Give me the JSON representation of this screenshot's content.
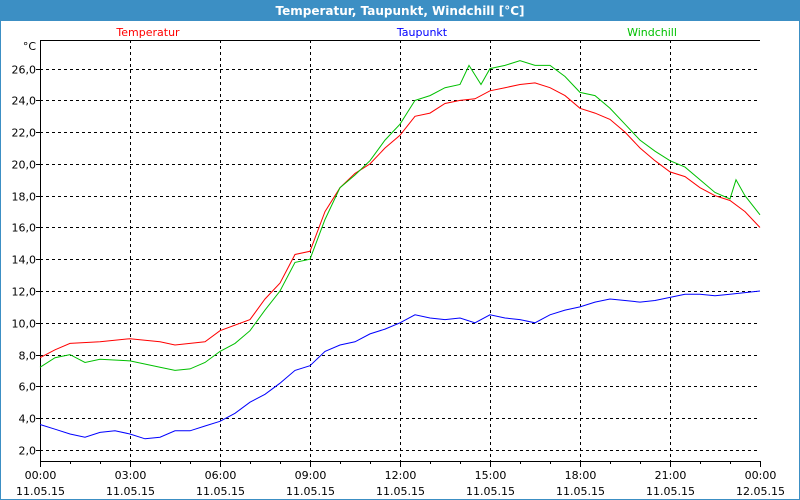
{
  "window_title": "Temperatur, Taupunkt, Windchill [°C]",
  "chart_data": {
    "type": "line",
    "title": "Temperatur, Taupunkt, Windchill [°C]",
    "ylabel": "°C",
    "ylim": [
      1.3,
      27.8
    ],
    "xlim": [
      0,
      24
    ],
    "grid": true,
    "y_ticks": [
      "2,0",
      "4,0",
      "6,0",
      "8,0",
      "10,0",
      "12,0",
      "14,0",
      "16,0",
      "18,0",
      "20,0",
      "22,0",
      "24,0",
      "26,0"
    ],
    "y_tick_values": [
      2,
      4,
      6,
      8,
      10,
      12,
      14,
      16,
      18,
      20,
      22,
      24,
      26
    ],
    "x_ticks": [
      {
        "time": "00:00",
        "date": "11.05.15"
      },
      {
        "time": "03:00",
        "date": "11.05.15"
      },
      {
        "time": "06:00",
        "date": "11.05.15"
      },
      {
        "time": "09:00",
        "date": "11.05.15"
      },
      {
        "time": "12:00",
        "date": "11.05.15"
      },
      {
        "time": "15:00",
        "date": "11.05.15"
      },
      {
        "time": "18:00",
        "date": "11.05.15"
      },
      {
        "time": "21:00",
        "date": "11.05.15"
      },
      {
        "time": "00:00",
        "date": "12.05.15"
      }
    ],
    "legend_placement": "top",
    "series": [
      {
        "name": "Temperatur",
        "color": "#ff0000",
        "x": [
          0,
          0.5,
          1,
          2,
          3,
          4,
          4.5,
          5,
          5.5,
          6,
          7,
          7.5,
          8,
          8.5,
          9,
          9.5,
          10,
          10.5,
          11,
          11.5,
          12,
          12.5,
          13,
          13.5,
          14,
          14.5,
          15,
          15.5,
          16,
          16.5,
          17,
          17.5,
          18,
          18.5,
          19,
          19.5,
          20,
          20.5,
          21,
          21.5,
          22,
          22.5,
          23,
          23.5,
          24
        ],
        "values": [
          7.8,
          8.3,
          8.7,
          8.8,
          9.0,
          8.8,
          8.6,
          8.7,
          8.8,
          9.5,
          10.2,
          11.5,
          12.5,
          14.3,
          14.5,
          17.0,
          18.5,
          19.4,
          20.0,
          21.0,
          21.8,
          23.0,
          23.2,
          23.8,
          24.0,
          24.1,
          24.6,
          24.8,
          25.0,
          25.1,
          24.8,
          24.3,
          23.5,
          23.2,
          22.8,
          22.0,
          21.0,
          20.2,
          19.5,
          19.2,
          18.5,
          18.0,
          17.7,
          17.0,
          16.0
        ]
      },
      {
        "name": "Taupunkt",
        "color": "#0000ff",
        "x": [
          0,
          0.5,
          1,
          1.5,
          2,
          2.5,
          3,
          3.5,
          4,
          4.5,
          5,
          5.5,
          6,
          6.5,
          7,
          7.5,
          8,
          8.5,
          9,
          9.5,
          10,
          10.5,
          11,
          11.5,
          12,
          12.5,
          13,
          13.5,
          14,
          14.5,
          15,
          15.5,
          16,
          16.5,
          17,
          17.5,
          18,
          18.5,
          19,
          19.5,
          20,
          20.5,
          21,
          21.5,
          22,
          22.5,
          23,
          23.5,
          24
        ],
        "values": [
          3.6,
          3.3,
          3.0,
          2.8,
          3.1,
          3.2,
          3.0,
          2.7,
          2.8,
          3.2,
          3.2,
          3.5,
          3.8,
          4.3,
          5.0,
          5.5,
          6.2,
          7.0,
          7.3,
          8.2,
          8.6,
          8.8,
          9.3,
          9.6,
          10.0,
          10.5,
          10.3,
          10.2,
          10.3,
          10.0,
          10.5,
          10.3,
          10.2,
          10.0,
          10.5,
          10.8,
          11.0,
          11.3,
          11.5,
          11.4,
          11.3,
          11.4,
          11.6,
          11.8,
          11.8,
          11.7,
          11.8,
          11.9,
          12.0
        ]
      },
      {
        "name": "Windchill",
        "color": "#00c000",
        "x": [
          0,
          0.5,
          1,
          1.5,
          2,
          3,
          4,
          4.5,
          5,
          5.5,
          6,
          6.5,
          7,
          7.5,
          8,
          8.5,
          9,
          9.5,
          10,
          10.5,
          11,
          11.5,
          12,
          12.5,
          13,
          13.5,
          14,
          14.3,
          14.7,
          15,
          15.5,
          16,
          16.5,
          17,
          17.5,
          18,
          18.5,
          19,
          19.5,
          20,
          20.5,
          21,
          21.5,
          22,
          22.5,
          23,
          23.2,
          23.5,
          24
        ],
        "values": [
          7.2,
          7.8,
          8.0,
          7.5,
          7.7,
          7.6,
          7.2,
          7.0,
          7.1,
          7.5,
          8.2,
          8.7,
          9.5,
          10.8,
          12.0,
          13.8,
          14.0,
          16.5,
          18.5,
          19.3,
          20.2,
          21.5,
          22.5,
          24.0,
          24.3,
          24.8,
          25.0,
          26.2,
          25.0,
          26.0,
          26.2,
          26.5,
          26.2,
          26.2,
          25.5,
          24.5,
          24.3,
          23.5,
          22.5,
          21.5,
          20.8,
          20.2,
          19.8,
          19.0,
          18.2,
          17.8,
          19.0,
          18.0,
          16.8
        ]
      }
    ]
  }
}
